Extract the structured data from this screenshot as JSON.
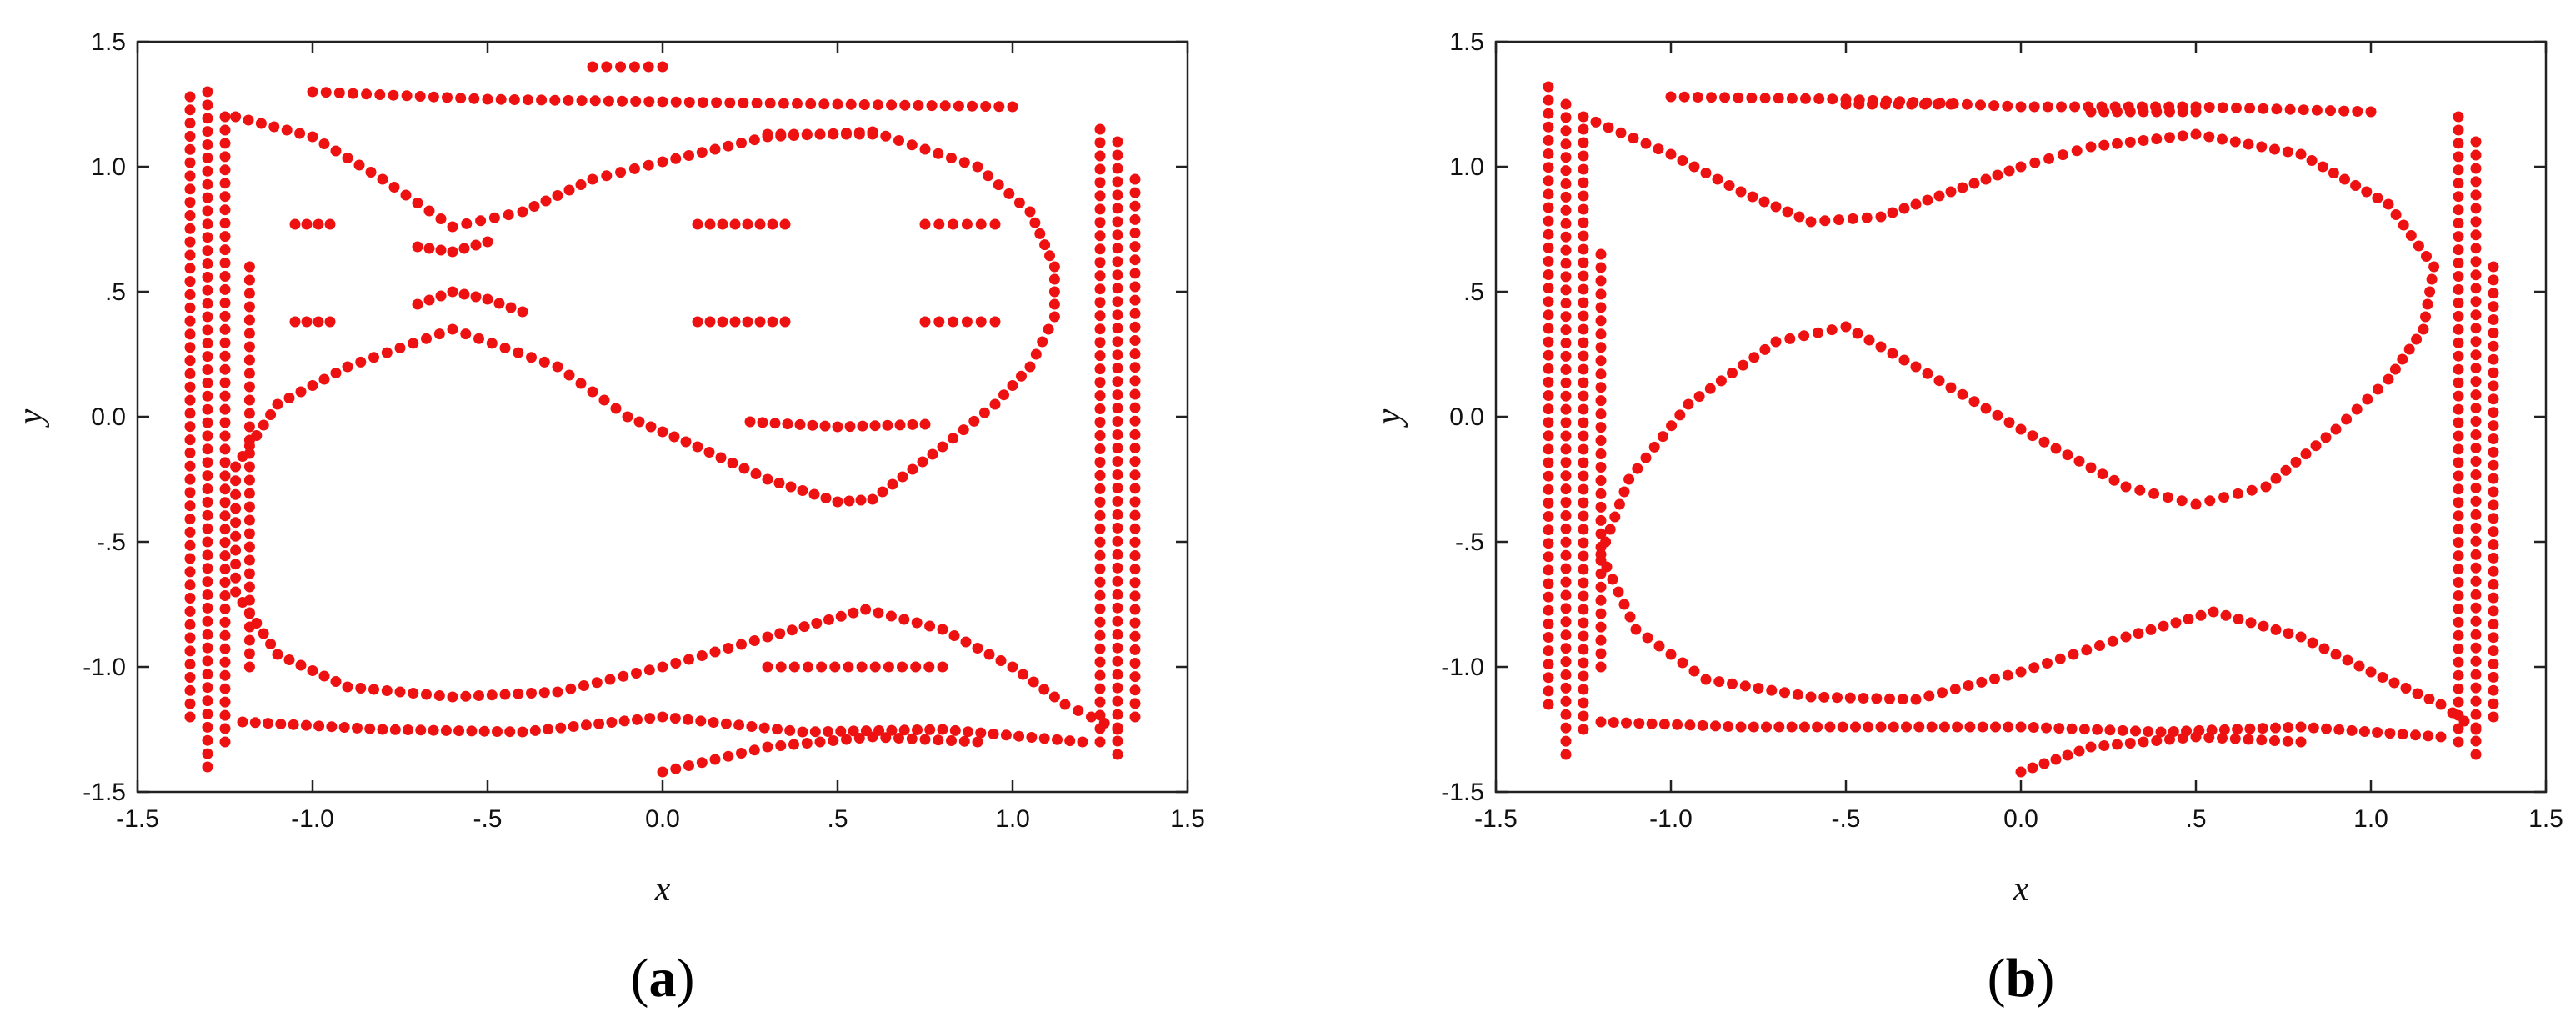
{
  "chart_data": [
    {
      "type": "scatter",
      "panel_label": "(a)",
      "panel_letter": "a",
      "xlabel": "x",
      "ylabel": "y",
      "xlim": [
        -1.5,
        1.5
      ],
      "ylim": [
        -1.5,
        1.5
      ],
      "xticks": [
        -1.5,
        -1.0,
        -0.5,
        0.0,
        0.5,
        1.0,
        1.5
      ],
      "xtick_labels": [
        "-1.5",
        "-1.0",
        "-.5",
        "0.0",
        ".5",
        "1.0",
        "1.5"
      ],
      "yticks": [
        -1.5,
        -1.0,
        -0.5,
        0.0,
        0.5,
        1.0,
        1.5
      ],
      "ytick_labels": [
        "-1.5",
        "-1.0",
        "-.5",
        "0.0",
        ".5",
        "1.0",
        "1.5"
      ],
      "grid": false,
      "marker_color": "#ee1111",
      "series": [
        {
          "curves": [
            [
              [
                -1.0,
                1.3
              ],
              [
                -0.5,
                1.27
              ],
              [
                0.0,
                1.26
              ],
              [
                0.5,
                1.25
              ],
              [
                1.0,
                1.24
              ]
            ],
            [
              [
                -1.22,
                1.2
              ],
              [
                -1.0,
                1.12
              ],
              [
                -0.8,
                0.95
              ],
              [
                -0.6,
                0.76
              ],
              [
                -0.4,
                0.82
              ],
              [
                -0.2,
                0.95
              ],
              [
                0.0,
                1.02
              ],
              [
                0.3,
                1.12
              ],
              [
                0.6,
                1.14
              ],
              [
                0.9,
                1.0
              ],
              [
                1.05,
                0.82
              ],
              [
                1.12,
                0.6
              ],
              [
                1.12,
                0.4
              ],
              [
                1.05,
                0.2
              ],
              [
                0.95,
                0.05
              ],
              [
                0.8,
                -0.12
              ],
              [
                0.6,
                -0.33
              ],
              [
                0.5,
                -0.34
              ],
              [
                0.3,
                -0.25
              ],
              [
                0.1,
                -0.12
              ],
              [
                -0.1,
                0.0
              ],
              [
                -0.3,
                0.2
              ],
              [
                -0.6,
                0.35
              ],
              [
                -0.9,
                0.2
              ],
              [
                -1.1,
                0.05
              ],
              [
                -1.22,
                -0.2
              ],
              [
                -1.22,
                -0.7
              ],
              [
                -1.1,
                -0.95
              ],
              [
                -0.9,
                -1.08
              ],
              [
                -0.6,
                -1.12
              ],
              [
                -0.3,
                -1.1
              ],
              [
                0.0,
                -1.0
              ],
              [
                0.3,
                -0.88
              ],
              [
                0.58,
                -0.77
              ],
              [
                0.8,
                -0.85
              ],
              [
                1.0,
                -1.0
              ],
              [
                1.15,
                -1.15
              ],
              [
                1.3,
                -1.25
              ]
            ],
            [
              [
                -0.7,
                0.68
              ],
              [
                -0.6,
                0.66
              ],
              [
                -0.5,
                0.7
              ]
            ],
            [
              [
                -0.7,
                0.45
              ],
              [
                -0.6,
                0.5
              ],
              [
                -0.5,
                0.47
              ],
              [
                -0.4,
                0.42
              ]
            ],
            [
              [
                0.25,
                -0.02
              ],
              [
                0.5,
                -0.04
              ],
              [
                0.75,
                -0.03
              ]
            ],
            [
              [
                -1.2,
                -1.22
              ],
              [
                -0.8,
                -1.25
              ],
              [
                -0.4,
                -1.26
              ],
              [
                0.0,
                -1.2
              ],
              [
                0.4,
                -1.26
              ],
              [
                0.8,
                -1.25
              ],
              [
                1.2,
                -1.3
              ]
            ],
            [
              [
                0.0,
                -1.42
              ],
              [
                0.3,
                -1.32
              ],
              [
                0.6,
                -1.28
              ],
              [
                0.9,
                -1.3
              ]
            ]
          ],
          "vbands": [
            [
              -1.3,
              -1.4,
              1.3
            ],
            [
              -1.25,
              -1.3,
              1.2
            ],
            [
              -1.35,
              -1.2,
              1.28
            ],
            [
              1.25,
              -1.3,
              1.15
            ],
            [
              1.3,
              -1.35,
              1.1
            ],
            [
              1.35,
              -1.2,
              0.95
            ],
            [
              -1.18,
              -1.0,
              0.6
            ]
          ],
          "hrows": [
            [
              0.1,
              0.35,
              0.77
            ],
            [
              0.75,
              0.95,
              0.77
            ],
            [
              0.1,
              0.35,
              0.38
            ],
            [
              0.75,
              0.95,
              0.38
            ],
            [
              0.3,
              0.8,
              -1.0
            ],
            [
              -1.05,
              -0.95,
              0.77
            ],
            [
              -1.05,
              -0.95,
              0.38
            ],
            [
              0.3,
              0.6,
              1.13
            ],
            [
              -0.2,
              0.0,
              1.4
            ]
          ]
        }
      ]
    },
    {
      "type": "scatter",
      "panel_label": "(b)",
      "panel_letter": "b",
      "xlabel": "x",
      "ylabel": "y",
      "xlim": [
        -1.5,
        1.5
      ],
      "ylim": [
        -1.5,
        1.5
      ],
      "xticks": [
        -1.5,
        -1.0,
        -0.5,
        0.0,
        0.5,
        1.0,
        1.5
      ],
      "xtick_labels": [
        "-1.5",
        "-1.0",
        "-.5",
        "0.0",
        ".5",
        "1.0",
        "1.5"
      ],
      "yticks": [
        -1.5,
        -1.0,
        -0.5,
        0.0,
        0.5,
        1.0,
        1.5
      ],
      "ytick_labels": [
        "-1.5",
        "-1.0",
        "-.5",
        "0.0",
        ".5",
        "1.0",
        "1.5"
      ],
      "grid": false,
      "marker_color": "#ee1111",
      "series": [
        {
          "curves": [
            [
              [
                -1.0,
                1.28
              ],
              [
                -0.5,
                1.27
              ],
              [
                0.0,
                1.24
              ],
              [
                0.5,
                1.24
              ],
              [
                1.0,
                1.22
              ]
            ],
            [
              [
                -1.25,
                1.2
              ],
              [
                -1.0,
                1.05
              ],
              [
                -0.8,
                0.9
              ],
              [
                -0.6,
                0.78
              ],
              [
                -0.4,
                0.8
              ],
              [
                -0.2,
                0.9
              ],
              [
                0.0,
                1.0
              ],
              [
                0.2,
                1.08
              ],
              [
                0.5,
                1.13
              ],
              [
                0.8,
                1.05
              ],
              [
                1.05,
                0.85
              ],
              [
                1.18,
                0.6
              ],
              [
                1.15,
                0.35
              ],
              [
                1.05,
                0.15
              ],
              [
                0.9,
                -0.05
              ],
              [
                0.7,
                -0.28
              ],
              [
                0.5,
                -0.35
              ],
              [
                0.3,
                -0.28
              ],
              [
                0.0,
                -0.05
              ],
              [
                -0.3,
                0.2
              ],
              [
                -0.5,
                0.36
              ],
              [
                -0.7,
                0.3
              ],
              [
                -0.95,
                0.05
              ],
              [
                -1.12,
                -0.25
              ],
              [
                -1.2,
                -0.55
              ],
              [
                -1.1,
                -0.85
              ],
              [
                -0.9,
                -1.05
              ],
              [
                -0.6,
                -1.12
              ],
              [
                -0.3,
                -1.13
              ],
              [
                0.0,
                -1.02
              ],
              [
                0.3,
                -0.88
              ],
              [
                0.55,
                -0.78
              ],
              [
                0.8,
                -0.88
              ],
              [
                1.0,
                -1.02
              ],
              [
                1.2,
                -1.15
              ],
              [
                1.3,
                -1.25
              ]
            ],
            [
              [
                -1.2,
                -1.22
              ],
              [
                -0.8,
                -1.24
              ],
              [
                -0.4,
                -1.24
              ],
              [
                0.0,
                -1.24
              ],
              [
                0.4,
                -1.26
              ],
              [
                0.8,
                -1.24
              ],
              [
                1.2,
                -1.28
              ]
            ],
            [
              [
                0.0,
                -1.42
              ],
              [
                0.2,
                -1.32
              ],
              [
                0.5,
                -1.28
              ],
              [
                0.8,
                -1.3
              ]
            ]
          ],
          "vbands": [
            [
              -1.3,
              -1.35,
              1.25
            ],
            [
              -1.25,
              -1.25,
              1.15
            ],
            [
              -1.35,
              -1.15,
              1.32
            ],
            [
              1.25,
              -1.3,
              1.2
            ],
            [
              1.3,
              -1.35,
              1.1
            ],
            [
              1.35,
              -1.2,
              0.6
            ],
            [
              -1.2,
              -1.0,
              0.65
            ]
          ],
          "hrows": [
            [
              0.2,
              0.5,
              1.22
            ],
            [
              -0.5,
              -0.2,
              1.25
            ]
          ]
        }
      ]
    }
  ]
}
